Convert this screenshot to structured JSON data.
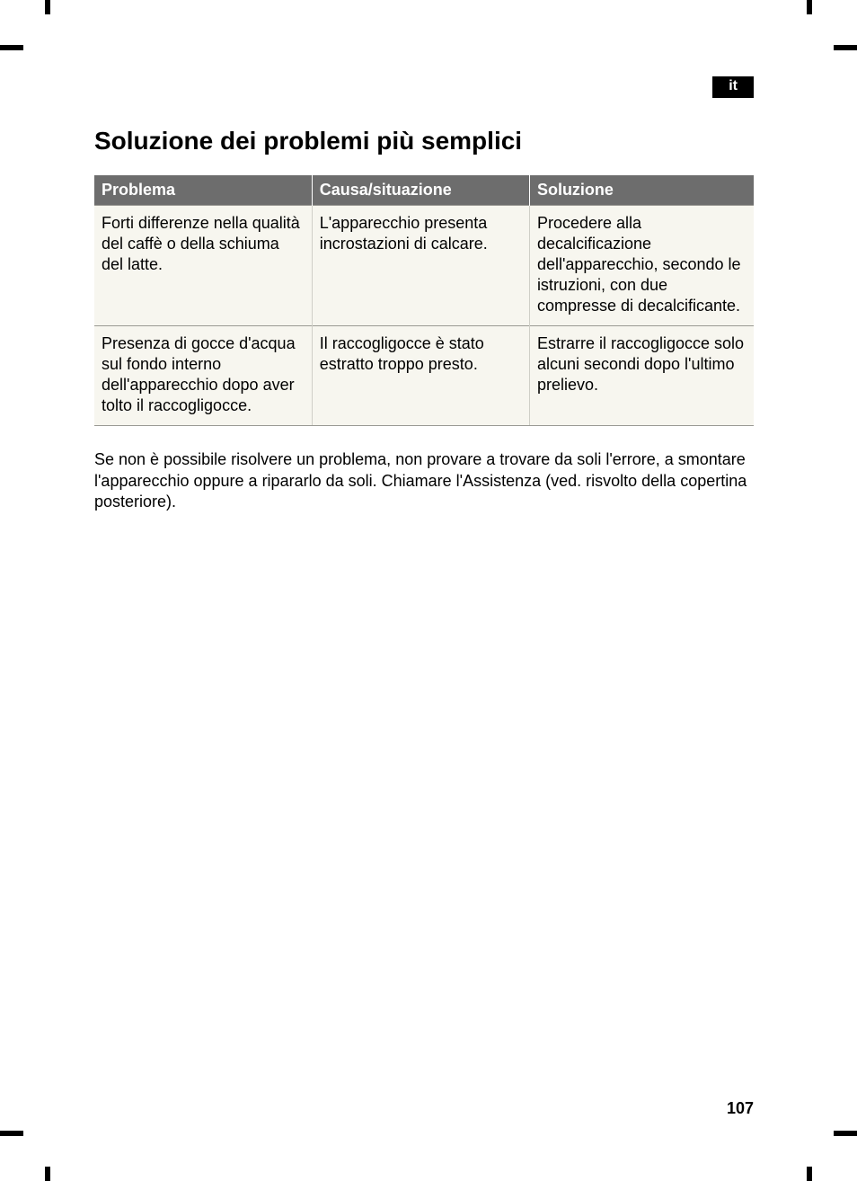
{
  "lang_tag": "it",
  "title": "Soluzione dei problemi più semplici",
  "table": {
    "columns": [
      "Problema",
      "Causa/situazione",
      "Soluzione"
    ],
    "rows": [
      {
        "problem": "Forti differenze nella qualità del caffè o della schiuma del latte.",
        "cause": "L'apparecchio presenta incrostazioni di calcare.",
        "solution": "Procedere alla decalcificazione dell'apparecchio, secondo le istruzioni, con due compresse di decalcificante."
      },
      {
        "problem": "Presenza di gocce d'acqua sul fondo interno dell'apparecchio dopo aver tolto il raccogligocce.",
        "cause": "Il raccogligocce è stato estratto troppo presto.",
        "solution": "Estrarre il raccogligocce solo alcuni secondi dopo l'ultimo prelievo."
      }
    ],
    "header_bg": "#6d6d6d",
    "header_fg": "#ffffff",
    "cell_bg": "#f7f6ef",
    "cell_fg": "#000000",
    "border_color": "#9a9a94",
    "col_border_color": "#cfcfc7",
    "font_size": 18
  },
  "footnote": "Se non è possibile risolvere un problema, non provare a trovare da soli l'errore, a smontare l'apparecchio oppure a ripararlo da soli. Chiamare l'Assistenza (ved. risvolto della copertina posteriore).",
  "page_number": "107",
  "colors": {
    "background": "#ffffff",
    "text": "#000000",
    "crop_marks": "#000000"
  }
}
